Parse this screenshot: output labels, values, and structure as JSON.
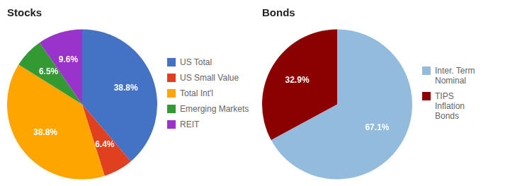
{
  "chart_data": [
    {
      "type": "pie",
      "title": "Stocks",
      "categories": [
        "US Total",
        "US Small Value",
        "Total Int'l",
        "Emerging Markets",
        "REIT"
      ],
      "values": [
        38.8,
        6.4,
        38.8,
        6.5,
        9.6
      ],
      "value_labels": [
        "38.8%",
        "6.4%",
        "38.8%",
        "6.5%",
        "9.6%"
      ],
      "colors": [
        "#4472C4",
        "#E04020",
        "#FFA500",
        "#339933",
        "#9933CC"
      ],
      "data_labels": true,
      "legend": "right"
    },
    {
      "type": "pie",
      "title": "Bonds",
      "categories": [
        "Inter. Term\nNominal",
        "TIPS\nInflation\nBonds"
      ],
      "values": [
        67.1,
        32.9
      ],
      "value_labels": [
        "67.1%",
        "32.9%"
      ],
      "colors": [
        "#92BBDD",
        "#8B0000"
      ],
      "data_labels": true,
      "legend": "right"
    }
  ]
}
